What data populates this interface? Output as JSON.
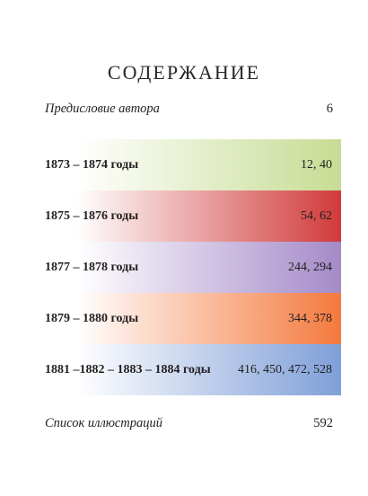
{
  "title": "СОДЕРЖАНИЕ",
  "preface": {
    "label": "Предисловие автора",
    "page": "6"
  },
  "sections": [
    {
      "years": "1873 – 1874 годы",
      "pages": "12, 40"
    },
    {
      "years": "1875 – 1876 годы",
      "pages": "54, 62"
    },
    {
      "years": "1877 – 1878 годы",
      "pages": "244, 294"
    },
    {
      "years": "1879 – 1880 годы",
      "pages": "344, 378"
    },
    {
      "years": "1881 –1882 – 1883 – 1884 годы",
      "pages": "416, 450, 472, 528"
    }
  ],
  "illustrations": {
    "label": "Список иллюстраций",
    "page": "592"
  },
  "colors": {
    "band_1873": "#c7dc93",
    "band_1875": "#d13a3a",
    "band_1877": "#a48ac8",
    "band_1879": "#f4793d",
    "band_1881": "#7f9fd8"
  }
}
